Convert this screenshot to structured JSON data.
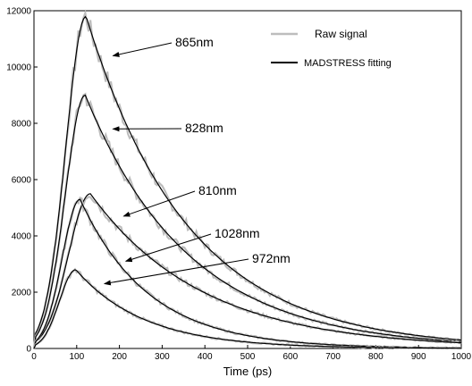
{
  "chart_data": {
    "type": "line",
    "title": "",
    "xlabel": "Time (ps)",
    "ylabel": "",
    "xlim": [
      0,
      1000
    ],
    "ylim": [
      0,
      12000
    ],
    "xticks": [
      "0",
      "100",
      "200",
      "300",
      "400",
      "500",
      "600",
      "700",
      "800",
      "900",
      "1000"
    ],
    "yticks": [
      "0",
      "2000",
      "4000",
      "6000",
      "8000",
      "10000",
      "12000"
    ],
    "grid": false,
    "legend_position": "top-right",
    "legend": [
      {
        "label": "Raw signal",
        "color": "#bdbdbd"
      },
      {
        "label": "MADSTRESS fitting",
        "color": "#000000"
      }
    ],
    "series": [
      {
        "label": "865nm",
        "peak_time_ps": 122,
        "peak_value": 11800,
        "tail_at_1000ps": 300
      },
      {
        "label": "828nm",
        "peak_time_ps": 120,
        "peak_value": 9000,
        "tail_at_1000ps": 240
      },
      {
        "label": "810nm",
        "peak_time_ps": 132,
        "peak_value": 5500,
        "tail_at_1000ps": 200
      },
      {
        "label": "1028nm",
        "peak_time_ps": 108,
        "peak_value": 5300,
        "tail_at_1000ps": 20
      },
      {
        "label": "972nm",
        "peak_time_ps": 98,
        "peak_value": 2800,
        "tail_at_1000ps": 10
      }
    ],
    "annotations": [
      {
        "text": "865nm",
        "points_to": [
          185,
          10400
        ]
      },
      {
        "text": "828nm",
        "points_to": [
          185,
          7800
        ]
      },
      {
        "text": "810nm",
        "points_to": [
          210,
          4700
        ]
      },
      {
        "text": "1028nm",
        "points_to": [
          215,
          3100
        ]
      },
      {
        "text": "972nm",
        "points_to": [
          165,
          2300
        ]
      }
    ]
  }
}
